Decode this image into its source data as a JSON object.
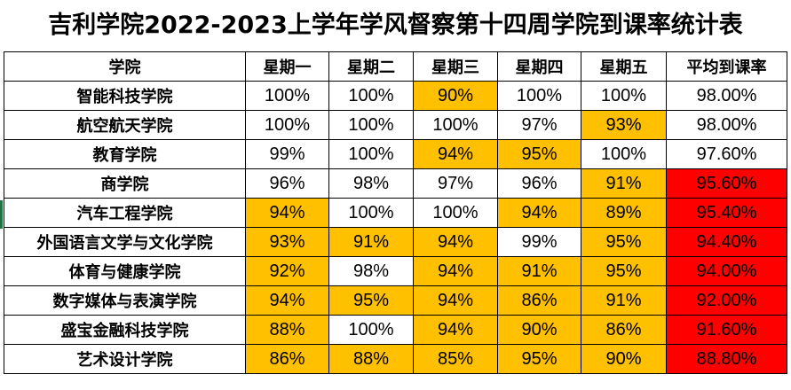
{
  "title": "吉利学院2022-2023上学年学风督察第十四周学院到课率统计表",
  "headers": [
    "学院",
    "星期一",
    "星期二",
    "星期三",
    "星期四",
    "星期五",
    "平均到课率"
  ],
  "rows": [
    {
      "college": "智能科技学院",
      "values": [
        "100%",
        "100%",
        "90%",
        "100%",
        "100%"
      ],
      "avg": "98.00%"
    },
    {
      "college": "航空航天学院",
      "values": [
        "100%",
        "100%",
        "100%",
        "97%",
        "93%"
      ],
      "avg": "98.00%"
    },
    {
      "college": "教育学院",
      "values": [
        "99%",
        "100%",
        "94%",
        "95%",
        "100%"
      ],
      "avg": "97.60%"
    },
    {
      "college": "商学院",
      "values": [
        "96%",
        "98%",
        "97%",
        "96%",
        "91%"
      ],
      "avg": "95.60%"
    },
    {
      "college": "汽车工程学院",
      "values": [
        "94%",
        "100%",
        "100%",
        "94%",
        "89%"
      ],
      "avg": "95.40%"
    },
    {
      "college": "外国语言文学与文化学院",
      "values": [
        "93%",
        "91%",
        "94%",
        "99%",
        "95%"
      ],
      "avg": "94.40%"
    },
    {
      "college": "体育与健康学院",
      "values": [
        "92%",
        "98%",
        "94%",
        "91%",
        "95%"
      ],
      "avg": "94.00%"
    },
    {
      "college": "数字媒体与表演学院",
      "values": [
        "94%",
        "95%",
        "94%",
        "86%",
        "91%"
      ],
      "avg": "92.00%"
    },
    {
      "college": "盛宝金融科技学院",
      "values": [
        "88%",
        "100%",
        "94%",
        "90%",
        "86%"
      ],
      "avg": "91.60%"
    },
    {
      "college": "艺术设计学院",
      "values": [
        "86%",
        "88%",
        "85%",
        "95%",
        "90%"
      ],
      "avg": "88.80%"
    }
  ],
  "highlight_cells": [
    [
      0,
      2
    ],
    [
      1,
      4
    ],
    [
      2,
      2
    ],
    [
      2,
      3
    ],
    [
      3,
      4
    ],
    [
      4,
      0
    ],
    [
      4,
      3
    ],
    [
      4,
      4
    ],
    [
      5,
      0
    ],
    [
      5,
      1
    ],
    [
      5,
      2
    ],
    [
      5,
      4
    ],
    [
      6,
      0
    ],
    [
      6,
      2
    ],
    [
      6,
      3
    ],
    [
      6,
      4
    ],
    [
      7,
      0
    ],
    [
      7,
      1
    ],
    [
      7,
      2
    ],
    [
      7,
      3
    ],
    [
      7,
      4
    ],
    [
      8,
      0
    ],
    [
      8,
      2
    ],
    [
      8,
      3
    ],
    [
      8,
      4
    ],
    [
      9,
      0
    ],
    [
      9,
      1
    ],
    [
      9,
      2
    ],
    [
      9,
      3
    ],
    [
      9,
      4
    ]
  ],
  "alert_avg_rows": [
    3,
    4,
    5,
    6,
    7,
    8,
    9
  ],
  "colors": {
    "warn": "#ffc000",
    "alert": "#ff0000",
    "border": "#000000"
  }
}
